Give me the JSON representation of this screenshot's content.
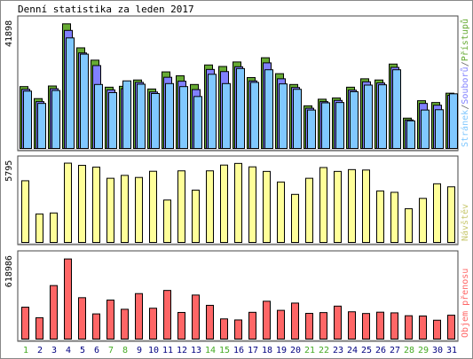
{
  "title": "Denní statistika za leden 2017",
  "colors": {
    "accesses": "#66aa33",
    "files": "#8080ff",
    "pages": "#80c8ff",
    "visits": "#ffff99",
    "traffic": "#ff6666",
    "weekend_label": "#44aa22",
    "weekday_label": "#000080"
  },
  "chart_data": [
    {
      "type": "bar",
      "panel": "top",
      "y_max_label": "41898",
      "right_legend": [
        "Stránek",
        "Souborů",
        "Přístupů"
      ],
      "categories": [
        "1",
        "2",
        "3",
        "4",
        "5",
        "6",
        "7",
        "8",
        "9",
        "10",
        "11",
        "12",
        "13",
        "14",
        "15",
        "16",
        "17",
        "18",
        "19",
        "20",
        "21",
        "22",
        "23",
        "24",
        "25",
        "26",
        "27",
        "28",
        "29",
        "30",
        "31"
      ],
      "weekend": [
        1,
        7,
        8,
        14,
        15,
        21,
        22,
        28,
        29
      ],
      "ylim": [
        0,
        41898
      ],
      "series": [
        {
          "name": "Přístupů",
          "values": [
            20600,
            16600,
            20800,
            41500,
            33500,
            29400,
            20400,
            20700,
            22800,
            19800,
            25500,
            24200,
            21300,
            27800,
            27300,
            28800,
            23600,
            30200,
            24900,
            21300,
            14200,
            16400,
            16800,
            20400,
            23200,
            22800,
            28100,
            10100,
            15900,
            15300,
            18400
          ]
        },
        {
          "name": "Souborů",
          "values": [
            19700,
            15600,
            19900,
            39300,
            31800,
            27600,
            19500,
            19900,
            22000,
            18800,
            23700,
            22400,
            19600,
            26300,
            25600,
            27200,
            22500,
            28500,
            23200,
            20300,
            13400,
            15600,
            16000,
            19400,
            22200,
            21800,
            27000,
            9500,
            15000,
            14400,
            17700
          ]
        },
        {
          "name": "Stránek",
          "values": [
            19100,
            15000,
            19300,
            36800,
            31400,
            21300,
            18600,
            22500,
            21400,
            18300,
            21600,
            20600,
            17300,
            24700,
            21600,
            26600,
            22000,
            26200,
            21500,
            19700,
            12800,
            15200,
            15300,
            18900,
            21100,
            21200,
            26200,
            9200,
            12800,
            12900,
            18200
          ]
        }
      ]
    },
    {
      "type": "bar",
      "panel": "middle",
      "y_max_label": "5795",
      "right_legend": [
        "Návštěv"
      ],
      "categories": [
        "1",
        "2",
        "3",
        "4",
        "5",
        "6",
        "7",
        "8",
        "9",
        "10",
        "11",
        "12",
        "13",
        "14",
        "15",
        "16",
        "17",
        "18",
        "19",
        "20",
        "21",
        "22",
        "23",
        "24",
        "25",
        "26",
        "27",
        "28",
        "29",
        "30",
        "31"
      ],
      "ylim": [
        0,
        5795
      ],
      "series": [
        {
          "name": "Návštěv",
          "values": [
            4480,
            2070,
            2140,
            5760,
            5600,
            5470,
            4660,
            4870,
            4720,
            5170,
            3080,
            5200,
            3800,
            5200,
            5620,
            5740,
            5490,
            5160,
            4390,
            3490,
            4660,
            5440,
            5160,
            5290,
            5260,
            3740,
            3640,
            2450,
            3200,
            4260,
            4040
          ]
        }
      ]
    },
    {
      "type": "bar",
      "panel": "bottom",
      "y_max_label": "618986",
      "right_legend": [
        "Objem přenosu"
      ],
      "categories": [
        "1",
        "2",
        "3",
        "4",
        "5",
        "6",
        "7",
        "8",
        "9",
        "10",
        "11",
        "12",
        "13",
        "14",
        "15",
        "16",
        "17",
        "18",
        "19",
        "20",
        "21",
        "22",
        "23",
        "24",
        "25",
        "26",
        "27",
        "28",
        "29",
        "30",
        "31"
      ],
      "ylim": [
        0,
        618986
      ],
      "series": [
        {
          "name": "Objem přenosu",
          "values": [
            242000,
            162000,
            406000,
            608000,
            314000,
            191000,
            296000,
            226000,
            345000,
            234000,
            369000,
            202000,
            334000,
            256000,
            153000,
            145000,
            203000,
            287000,
            218000,
            273000,
            195000,
            201000,
            250000,
            207000,
            194000,
            204000,
            199000,
            177000,
            175000,
            143000,
            181000
          ]
        }
      ]
    }
  ]
}
